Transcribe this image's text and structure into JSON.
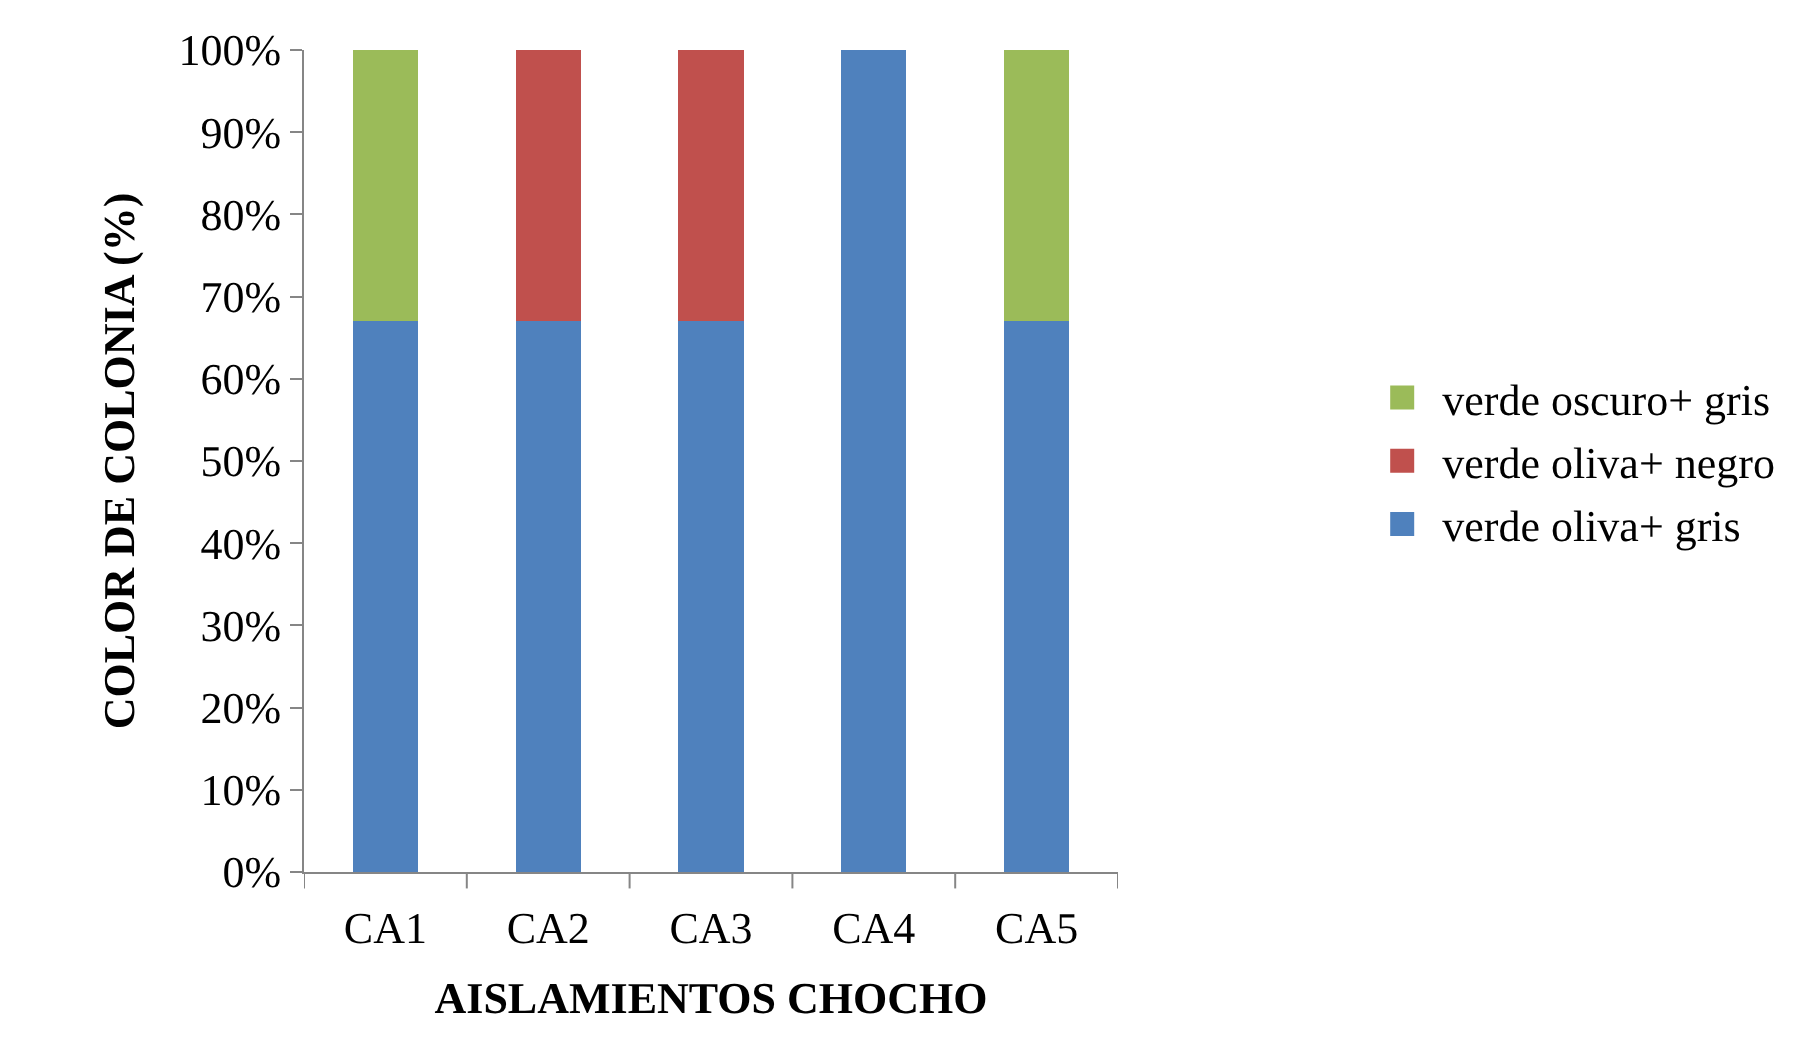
{
  "chart_data": {
    "type": "bar",
    "stacked": true,
    "xlabel": "AISLAMIENTOS CHOCHO",
    "ylabel": "COLOR DE COLONIA (%)",
    "categories": [
      "CA1",
      "CA2",
      "CA3",
      "CA4",
      "CA5"
    ],
    "series": [
      {
        "name": "verde oliva+ gris",
        "color": "#4f81bd",
        "values": [
          67,
          67,
          67,
          100,
          67
        ]
      },
      {
        "name": "verde oliva+ negro",
        "color": "#c0504d",
        "values": [
          null,
          33,
          33,
          null,
          null
        ]
      },
      {
        "name": "verde oscuro+ gris",
        "color": "#9bbb59",
        "values": [
          33,
          null,
          null,
          null,
          33
        ]
      }
    ],
    "ylim": [
      0,
      100
    ],
    "yticks": [
      {
        "value": 0,
        "label": "0%"
      },
      {
        "value": 10,
        "label": "10%"
      },
      {
        "value": 20,
        "label": "20%"
      },
      {
        "value": 30,
        "label": "30%"
      },
      {
        "value": 40,
        "label": "40%"
      },
      {
        "value": 50,
        "label": "50%"
      },
      {
        "value": 60,
        "label": "60%"
      },
      {
        "value": 70,
        "label": "70%"
      },
      {
        "value": 80,
        "label": "80%"
      },
      {
        "value": 90,
        "label": "90%"
      },
      {
        "value": 100,
        "label": "100%"
      }
    ],
    "grid": false,
    "legend": "right"
  }
}
